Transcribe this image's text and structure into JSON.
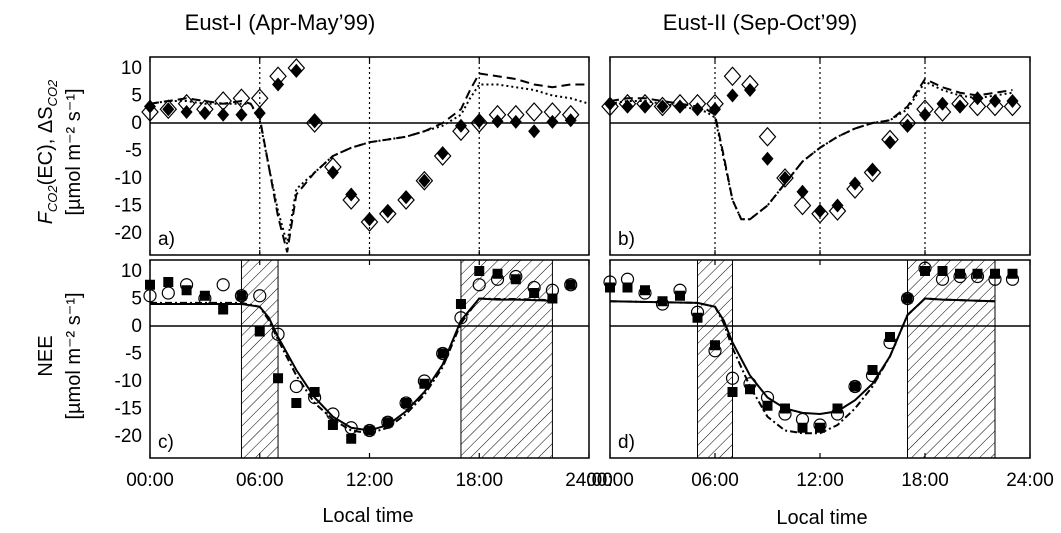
{
  "figure": {
    "titles": [
      "Eust-I (Apr-May’99)",
      "Eust-II (Sep-Oct’99)"
    ],
    "xlabel": "Local time",
    "xticks": [
      "00:00",
      "06:00",
      "12:00",
      "18:00",
      "24:00"
    ],
    "ylabel_top": {
      "main": "F",
      "sub": "CO2",
      "mid": "(EC), ΔS",
      "sub2": "CO2",
      "unit": "[µmol m⁻² s⁻¹]"
    },
    "ylabel_bottom": {
      "main": "NEE",
      "unit": "[µmol m⁻² s⁻¹]"
    }
  },
  "chart_data": [
    {
      "panel": "a)",
      "type": "scatter",
      "title": "Eust-I (Apr-May’99)",
      "xlabel": "",
      "ylabel": "F_CO2(EC), ΔS_CO2 [µmol m-2 s-1]",
      "xlim": [
        0,
        24
      ],
      "ylim": [
        -24,
        12
      ],
      "yticks": [
        10,
        5,
        0,
        -5,
        -10,
        -15,
        -20
      ],
      "xticks": [
        0,
        6,
        12,
        18,
        24
      ],
      "hlines": [
        0
      ],
      "vlines_dotted": [
        6,
        12,
        18
      ],
      "grid": false,
      "series": [
        {
          "marker": "filled-diamond",
          "x": [
            0,
            1,
            2,
            3,
            4,
            5,
            6,
            7,
            8,
            9,
            10,
            11,
            12,
            13,
            14,
            15,
            16,
            17,
            18,
            19,
            20,
            21,
            22,
            23
          ],
          "y": [
            3,
            2.5,
            2,
            1.8,
            1.5,
            1.5,
            1.8,
            7,
            9.5,
            0.3,
            -9,
            -13,
            -17.5,
            -16,
            -13.5,
            -10.5,
            -5.5,
            -0.5,
            0.3,
            0.3,
            0.2,
            -1.5,
            0.2,
            0.5
          ]
        },
        {
          "marker": "open-diamond",
          "x": [
            0,
            1,
            2,
            3,
            4,
            5,
            6,
            7,
            8,
            9,
            10,
            11,
            12,
            13,
            14,
            15,
            16,
            17,
            18,
            19,
            20,
            21,
            22,
            23
          ],
          "y": [
            2,
            2.5,
            3.5,
            2.5,
            4,
            4.5,
            4.5,
            8.5,
            10,
            0,
            -8,
            -14,
            -18,
            -16.5,
            -14,
            -10.5,
            -6,
            -1.5,
            0,
            1.5,
            1.5,
            2,
            2,
            1.5
          ]
        },
        {
          "line": "dashed",
          "x": [
            0,
            1,
            2,
            3,
            4,
            5,
            5.5,
            6,
            6.5,
            7,
            7.5,
            8,
            9,
            10,
            11,
            12,
            13,
            14,
            15,
            16,
            17,
            17.5,
            18,
            19,
            20,
            21,
            22,
            23,
            24
          ],
          "y": [
            3.5,
            4,
            4.5,
            4,
            3.5,
            4,
            3.5,
            1,
            -8,
            -17,
            -23.5,
            -13,
            -9,
            -6,
            -4.5,
            -3.5,
            -3,
            -2.5,
            -1.5,
            0,
            2.5,
            6,
            9,
            8.5,
            8,
            7,
            6.5,
            7,
            7
          ]
        },
        {
          "line": "dotted",
          "x": [
            0,
            1,
            2,
            3,
            4,
            5,
            5.5,
            6,
            6.5,
            7,
            7.5,
            8,
            9,
            10,
            11,
            12,
            13,
            14,
            15,
            16,
            17,
            17.5,
            18,
            19,
            20,
            21,
            22,
            23,
            24
          ],
          "y": [
            3.5,
            4,
            4,
            3.5,
            3.5,
            3.5,
            3.5,
            0.5,
            -8,
            -16,
            -22,
            -12,
            -9,
            -6,
            -4.5,
            -3.5,
            -3,
            -2.5,
            -1.5,
            -0.5,
            1.5,
            4.5,
            7,
            7,
            6.5,
            6,
            5,
            4.5,
            3.5
          ]
        }
      ]
    },
    {
      "panel": "b)",
      "type": "scatter",
      "title": "Eust-II (Sep-Oct’99)",
      "xlim": [
        0,
        24
      ],
      "ylim": [
        -24,
        12
      ],
      "xticks": [
        0,
        6,
        12,
        18,
        24
      ],
      "hlines": [
        0
      ],
      "vlines_dotted": [
        6,
        12,
        18
      ],
      "grid": false,
      "series": [
        {
          "marker": "filled-diamond",
          "x": [
            0,
            1,
            2,
            3,
            4,
            5,
            6,
            7,
            8,
            9,
            10,
            11,
            12,
            13,
            14,
            15,
            16,
            17,
            18,
            19,
            20,
            21,
            22,
            23
          ],
          "y": [
            3.5,
            3,
            3,
            3,
            3,
            2.5,
            2.5,
            5,
            6,
            -6.5,
            -10,
            -12.5,
            -16,
            -15,
            -11,
            -8.5,
            -3.5,
            -0.5,
            1.5,
            3.5,
            3,
            4.5,
            4,
            4
          ]
        },
        {
          "marker": "open-diamond",
          "x": [
            0,
            1,
            2,
            3,
            4,
            5,
            6,
            7,
            8,
            9,
            10,
            11,
            12,
            13,
            14,
            15,
            16,
            17,
            18,
            19,
            20,
            21,
            22,
            23
          ],
          "y": [
            3,
            3.5,
            3.5,
            3,
            3.5,
            3.5,
            3.5,
            8.5,
            7,
            -2.5,
            -10,
            -15,
            -16.5,
            -16,
            -12,
            -9,
            -3,
            0,
            2.5,
            2,
            3.5,
            3,
            3,
            3
          ]
        },
        {
          "line": "dashed",
          "x": [
            0,
            1,
            2,
            3,
            4,
            5,
            5.5,
            6,
            6.5,
            7,
            7.5,
            8,
            9,
            10,
            11,
            12,
            13,
            14,
            15,
            16,
            17,
            18,
            19,
            20,
            21,
            22,
            23
          ],
          "y": [
            4,
            4.5,
            4.5,
            4,
            3.5,
            3,
            2.5,
            1.5,
            -6,
            -14,
            -17.5,
            -17.5,
            -15,
            -11,
            -7,
            -4.5,
            -2.5,
            -1,
            0,
            0.5,
            3,
            8,
            6.5,
            5.5,
            5,
            5.5,
            6
          ]
        },
        {
          "line": "dotted",
          "x": [
            0,
            1,
            2,
            3,
            4,
            5,
            5.5,
            6,
            6.5,
            7,
            7.5,
            8,
            9,
            10,
            11,
            12,
            13,
            14,
            15,
            16,
            17,
            18,
            19,
            20,
            21,
            22,
            23
          ],
          "y": [
            3.5,
            4,
            4,
            3.5,
            3,
            2.5,
            2,
            1,
            -6.5,
            -14,
            -17.5,
            -17.5,
            -15,
            -11,
            -7,
            -4.5,
            -2.5,
            -1,
            0,
            0.5,
            2.5,
            7.5,
            6,
            5,
            4.5,
            5,
            5.5
          ]
        }
      ]
    },
    {
      "panel": "c)",
      "type": "scatter",
      "xlabel": "Local time",
      "ylabel": "NEE [µmol m-2 s-1]",
      "xlim": [
        0,
        24
      ],
      "ylim": [
        -24,
        12
      ],
      "yticks": [
        10,
        5,
        0,
        -5,
        -10,
        -15,
        -20
      ],
      "xticks": [
        0,
        6,
        12,
        18,
        24
      ],
      "hlines": [
        0
      ],
      "shaded_x_ranges": [
        [
          5,
          7
        ],
        [
          17,
          22
        ]
      ],
      "series": [
        {
          "marker": "filled-square",
          "x": [
            0,
            1,
            2,
            3,
            4,
            5,
            6,
            7,
            8,
            9,
            10,
            11,
            12,
            13,
            14,
            15,
            16,
            17,
            18,
            19,
            20,
            21,
            22,
            23
          ],
          "y": [
            7.5,
            8,
            6.5,
            5.5,
            3,
            5.5,
            -1,
            -9.5,
            -14,
            -12,
            -18,
            -20.5,
            -19,
            -17.5,
            -14,
            -10.5,
            -5,
            4,
            10,
            9.5,
            8.5,
            6,
            5,
            7.5
          ]
        },
        {
          "marker": "open-circle",
          "x": [
            0,
            1,
            2,
            3,
            4,
            5,
            6,
            7,
            8,
            9,
            10,
            11,
            12,
            13,
            14,
            15,
            16,
            17,
            18,
            19,
            20,
            21,
            22,
            23
          ],
          "y": [
            5.5,
            6,
            7.5,
            5,
            7.5,
            5.5,
            5.5,
            -1.5,
            -11,
            -13,
            -16,
            -18.5,
            -19,
            -17.5,
            -14,
            -10,
            -5,
            1.5,
            7.5,
            8.5,
            9,
            7,
            6.5,
            7.5
          ]
        },
        {
          "line": "solid",
          "x": [
            0,
            5,
            6,
            6.5,
            7,
            8,
            9,
            10,
            11,
            12,
            13,
            14,
            15,
            16,
            17,
            18,
            19,
            20,
            21,
            22
          ],
          "y": [
            4,
            4,
            3.5,
            1.5,
            -2,
            -8,
            -13,
            -16.5,
            -18.5,
            -19,
            -18,
            -15.5,
            -12,
            -7,
            1,
            5,
            4.8,
            4.8,
            4.7,
            4.6
          ]
        },
        {
          "line": "dash-dot",
          "x": [
            0,
            5,
            6,
            6.5,
            7,
            8,
            9,
            10,
            11,
            12,
            13,
            14,
            15,
            16,
            17,
            18,
            19,
            20,
            21,
            22
          ],
          "y": [
            4.2,
            4.2,
            3.5,
            1,
            -2.5,
            -9,
            -14,
            -17,
            -19,
            -19.5,
            -18.5,
            -16,
            -12.5,
            -7.5,
            0.5,
            5,
            4.9,
            4.9,
            4.8,
            4.7
          ]
        }
      ]
    },
    {
      "panel": "d)",
      "type": "scatter",
      "xlabel": "Local time",
      "xlim": [
        0,
        24
      ],
      "ylim": [
        -24,
        12
      ],
      "xticks": [
        0,
        6,
        12,
        18,
        24
      ],
      "hlines": [
        0
      ],
      "shaded_x_ranges": [
        [
          5,
          7
        ],
        [
          17,
          22
        ]
      ],
      "series": [
        {
          "marker": "filled-square",
          "x": [
            0,
            1,
            2,
            3,
            4,
            5,
            6,
            7,
            8,
            9,
            10,
            11,
            12,
            13,
            14,
            15,
            16,
            17,
            18,
            19,
            20,
            21,
            22,
            23
          ],
          "y": [
            7,
            7,
            6.5,
            4.5,
            5.5,
            1.5,
            -3.5,
            -12,
            -11.5,
            -14.5,
            -15,
            -18.5,
            -18.5,
            -15,
            -11,
            -8,
            -2,
            5,
            10,
            10,
            9.5,
            9.5,
            9.5,
            9.5
          ]
        },
        {
          "marker": "open-circle",
          "x": [
            0,
            1,
            2,
            3,
            4,
            5,
            6,
            7,
            8,
            9,
            10,
            11,
            12,
            13,
            14,
            15,
            16,
            17,
            18,
            19,
            20,
            21,
            22,
            23
          ],
          "y": [
            8,
            8.5,
            6,
            4,
            6.5,
            2.5,
            -4.5,
            -9.5,
            -10.5,
            -13,
            -16,
            -17,
            -18,
            -16,
            -11,
            -9,
            -3,
            5,
            10.5,
            8.5,
            9,
            9,
            8.5,
            8.5
          ]
        },
        {
          "line": "solid",
          "x": [
            0,
            5,
            6,
            6.5,
            7,
            8,
            9,
            10,
            11,
            12,
            13,
            14,
            15,
            16,
            17,
            18,
            19,
            20,
            21,
            22
          ],
          "y": [
            4.5,
            4.2,
            3.5,
            1,
            -3,
            -9,
            -13,
            -15,
            -15.8,
            -16,
            -15.5,
            -13.5,
            -10.5,
            -5.5,
            2,
            5,
            4.8,
            4.7,
            4.6,
            4.5
          ]
        },
        {
          "line": "dash-dot",
          "x": [
            0,
            5,
            6,
            6.5,
            7,
            8,
            9,
            10,
            11,
            12,
            13,
            14,
            15,
            16,
            17,
            18,
            19,
            20,
            21,
            22
          ],
          "y": [
            4.5,
            4.2,
            3.5,
            0.5,
            -4,
            -11,
            -16.5,
            -19,
            -19.5,
            -19.5,
            -18,
            -15,
            -11,
            -5.5,
            2,
            5,
            4.8,
            4.7,
            4.6,
            4.5
          ]
        }
      ]
    }
  ]
}
